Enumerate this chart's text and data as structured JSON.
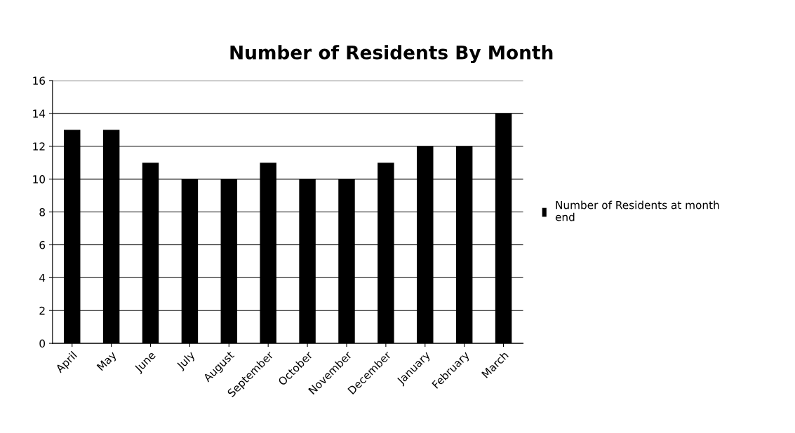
{
  "chart_data": {
    "type": "bar",
    "title": "Number of Residents By Month",
    "categories": [
      "April",
      "May",
      "June",
      "July",
      "August",
      "September",
      "October",
      "November",
      "December",
      "January",
      "February",
      "March"
    ],
    "series": [
      {
        "name": "Number of Residents at month\nend",
        "color": "#000000",
        "values": [
          13,
          13,
          11,
          10,
          10,
          11,
          10,
          10,
          11,
          12,
          12,
          14
        ]
      }
    ],
    "ylim": [
      0,
      16
    ],
    "yticks": [
      0,
      2,
      4,
      6,
      8,
      10,
      12,
      14,
      16
    ],
    "grid": "y",
    "legend": "right"
  }
}
